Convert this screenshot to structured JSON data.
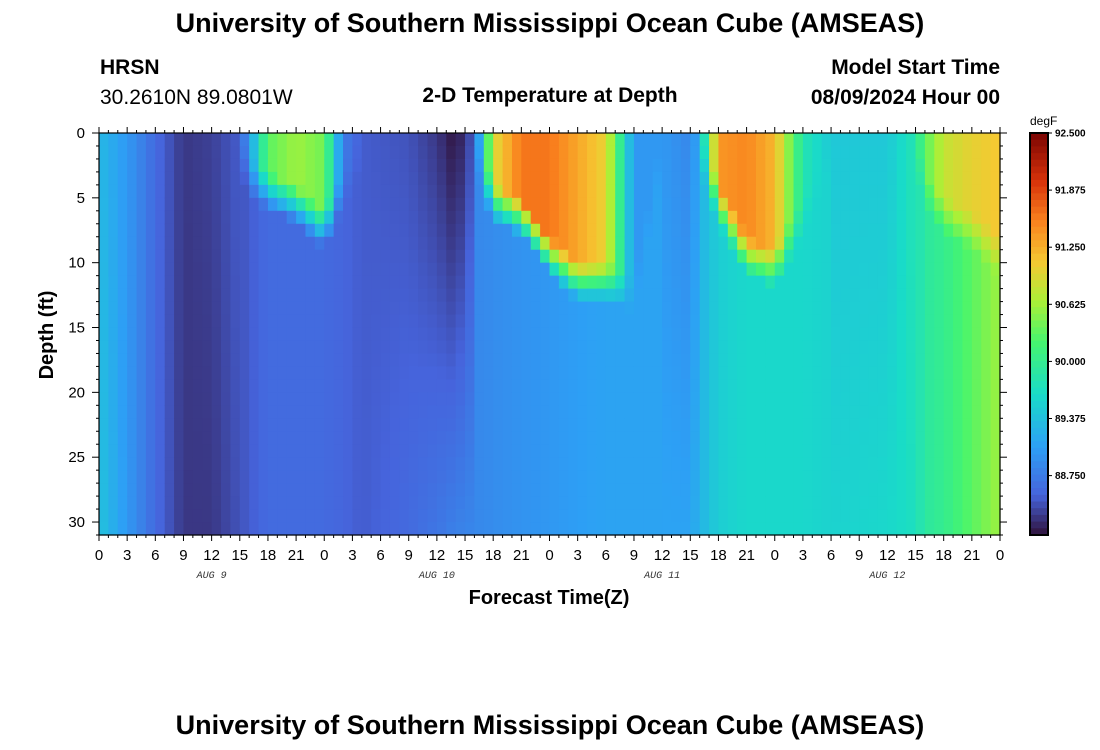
{
  "header": {
    "title": "University of Southern Mississippi Ocean Cube (AMSEAS)",
    "station": "HRSN",
    "coords": "30.2610N  89.0801W",
    "subtitle": "2-D Temperature at Depth",
    "start_label": "Model Start Time",
    "start_value": "08/09/2024 Hour 00",
    "footer_title": "University of Southern Mississippi Ocean Cube (AMSEAS)"
  },
  "chart_data": {
    "type": "heatmap",
    "title": "2-D Temperature at Depth",
    "xlabel": "Forecast Time(Z)",
    "ylabel": "Depth (ft)",
    "units": "degF",
    "x_hours": [
      0,
      96
    ],
    "ylim": [
      0,
      31
    ],
    "x_tick_labels": [
      "0",
      "3",
      "6",
      "9",
      "12",
      "15",
      "18",
      "21",
      "0",
      "3",
      "6",
      "9",
      "12",
      "15",
      "18",
      "21",
      "0",
      "3",
      "6",
      "9",
      "12",
      "15",
      "18",
      "21",
      "0",
      "3",
      "6",
      "9",
      "12",
      "15",
      "18",
      "21",
      "0"
    ],
    "y_ticks": [
      0,
      5,
      10,
      15,
      20,
      25,
      30
    ],
    "day_labels": [
      {
        "label": "AUG 9",
        "hour": 12
      },
      {
        "label": "AUG 10",
        "hour": 36
      },
      {
        "label": "AUG 11",
        "hour": 60
      },
      {
        "label": "AUG 12",
        "hour": 84
      }
    ],
    "colorbar": {
      "min": 88.1,
      "max": 92.5,
      "ticks": [
        "92.500",
        "91.875",
        "91.250",
        "90.625",
        "90.000",
        "89.375",
        "88.750"
      ]
    },
    "columns": [
      {
        "hour": 0,
        "surface": 89.3,
        "bottom": 89.4,
        "mix_depth": 0
      },
      {
        "hour": 3,
        "surface": 89.0,
        "bottom": 89.0,
        "mix_depth": 0
      },
      {
        "hour": 6,
        "surface": 88.6,
        "bottom": 88.6,
        "mix_depth": 0
      },
      {
        "hour": 9,
        "surface": 88.3,
        "bottom": 88.3,
        "mix_depth": 0
      },
      {
        "hour": 12,
        "surface": 88.35,
        "bottom": 88.3,
        "mix_depth": 0
      },
      {
        "hour": 15,
        "surface": 88.5,
        "bottom": 88.45,
        "mix_depth": 0
      },
      {
        "hour": 16,
        "surface": 89.0,
        "bottom": 88.5,
        "mix_depth": 2
      },
      {
        "hour": 18,
        "surface": 90.3,
        "bottom": 88.6,
        "mix_depth": 3
      },
      {
        "hour": 21,
        "surface": 90.6,
        "bottom": 88.6,
        "mix_depth": 4
      },
      {
        "hour": 24,
        "surface": 90.4,
        "bottom": 88.6,
        "mix_depth": 6
      },
      {
        "hour": 26,
        "surface": 88.75,
        "bottom": 88.55,
        "mix_depth": 3
      },
      {
        "hour": 28,
        "surface": 88.5,
        "bottom": 88.5,
        "mix_depth": 0
      },
      {
        "hour": 33,
        "surface": 88.45,
        "bottom": 88.6,
        "mix_depth": 0
      },
      {
        "hour": 36,
        "surface": 88.3,
        "bottom": 88.7,
        "mix_depth": 0
      },
      {
        "hour": 38,
        "surface": 88.1,
        "bottom": 88.8,
        "mix_depth": 0
      },
      {
        "hour": 40,
        "surface": 88.5,
        "bottom": 88.85,
        "mix_depth": 0
      },
      {
        "hour": 42,
        "surface": 90.9,
        "bottom": 88.9,
        "mix_depth": 4
      },
      {
        "hour": 45,
        "surface": 91.6,
        "bottom": 88.95,
        "mix_depth": 5
      },
      {
        "hour": 48,
        "surface": 91.6,
        "bottom": 89.0,
        "mix_depth": 8
      },
      {
        "hour": 51,
        "surface": 91.3,
        "bottom": 89.05,
        "mix_depth": 10
      },
      {
        "hour": 54,
        "surface": 91.0,
        "bottom": 89.1,
        "mix_depth": 10
      },
      {
        "hour": 57,
        "surface": 89.0,
        "bottom": 89.1,
        "mix_depth": 11
      },
      {
        "hour": 60,
        "surface": 89.0,
        "bottom": 89.1,
        "mix_depth": 0
      },
      {
        "hour": 63,
        "surface": 88.85,
        "bottom": 89.1,
        "mix_depth": 0
      },
      {
        "hour": 64,
        "surface": 89.2,
        "bottom": 89.25,
        "mix_depth": 0
      },
      {
        "hour": 66,
        "surface": 91.4,
        "bottom": 89.5,
        "mix_depth": 4
      },
      {
        "hour": 69,
        "surface": 91.5,
        "bottom": 89.6,
        "mix_depth": 8
      },
      {
        "hour": 72,
        "surface": 91.2,
        "bottom": 89.6,
        "mix_depth": 9
      },
      {
        "hour": 75,
        "surface": 89.8,
        "bottom": 89.6,
        "mix_depth": 5
      },
      {
        "hour": 78,
        "surface": 89.45,
        "bottom": 89.55,
        "mix_depth": 0
      },
      {
        "hour": 84,
        "surface": 89.45,
        "bottom": 89.6,
        "mix_depth": 0
      },
      {
        "hour": 87,
        "surface": 89.8,
        "bottom": 89.7,
        "mix_depth": 0
      },
      {
        "hour": 88,
        "surface": 90.3,
        "bottom": 89.9,
        "mix_depth": 3
      },
      {
        "hour": 90,
        "surface": 90.8,
        "bottom": 90.0,
        "mix_depth": 5
      },
      {
        "hour": 93,
        "surface": 91.0,
        "bottom": 90.3,
        "mix_depth": 6
      },
      {
        "hour": 96,
        "surface": 91.1,
        "bottom": 90.6,
        "mix_depth": 8
      }
    ]
  }
}
